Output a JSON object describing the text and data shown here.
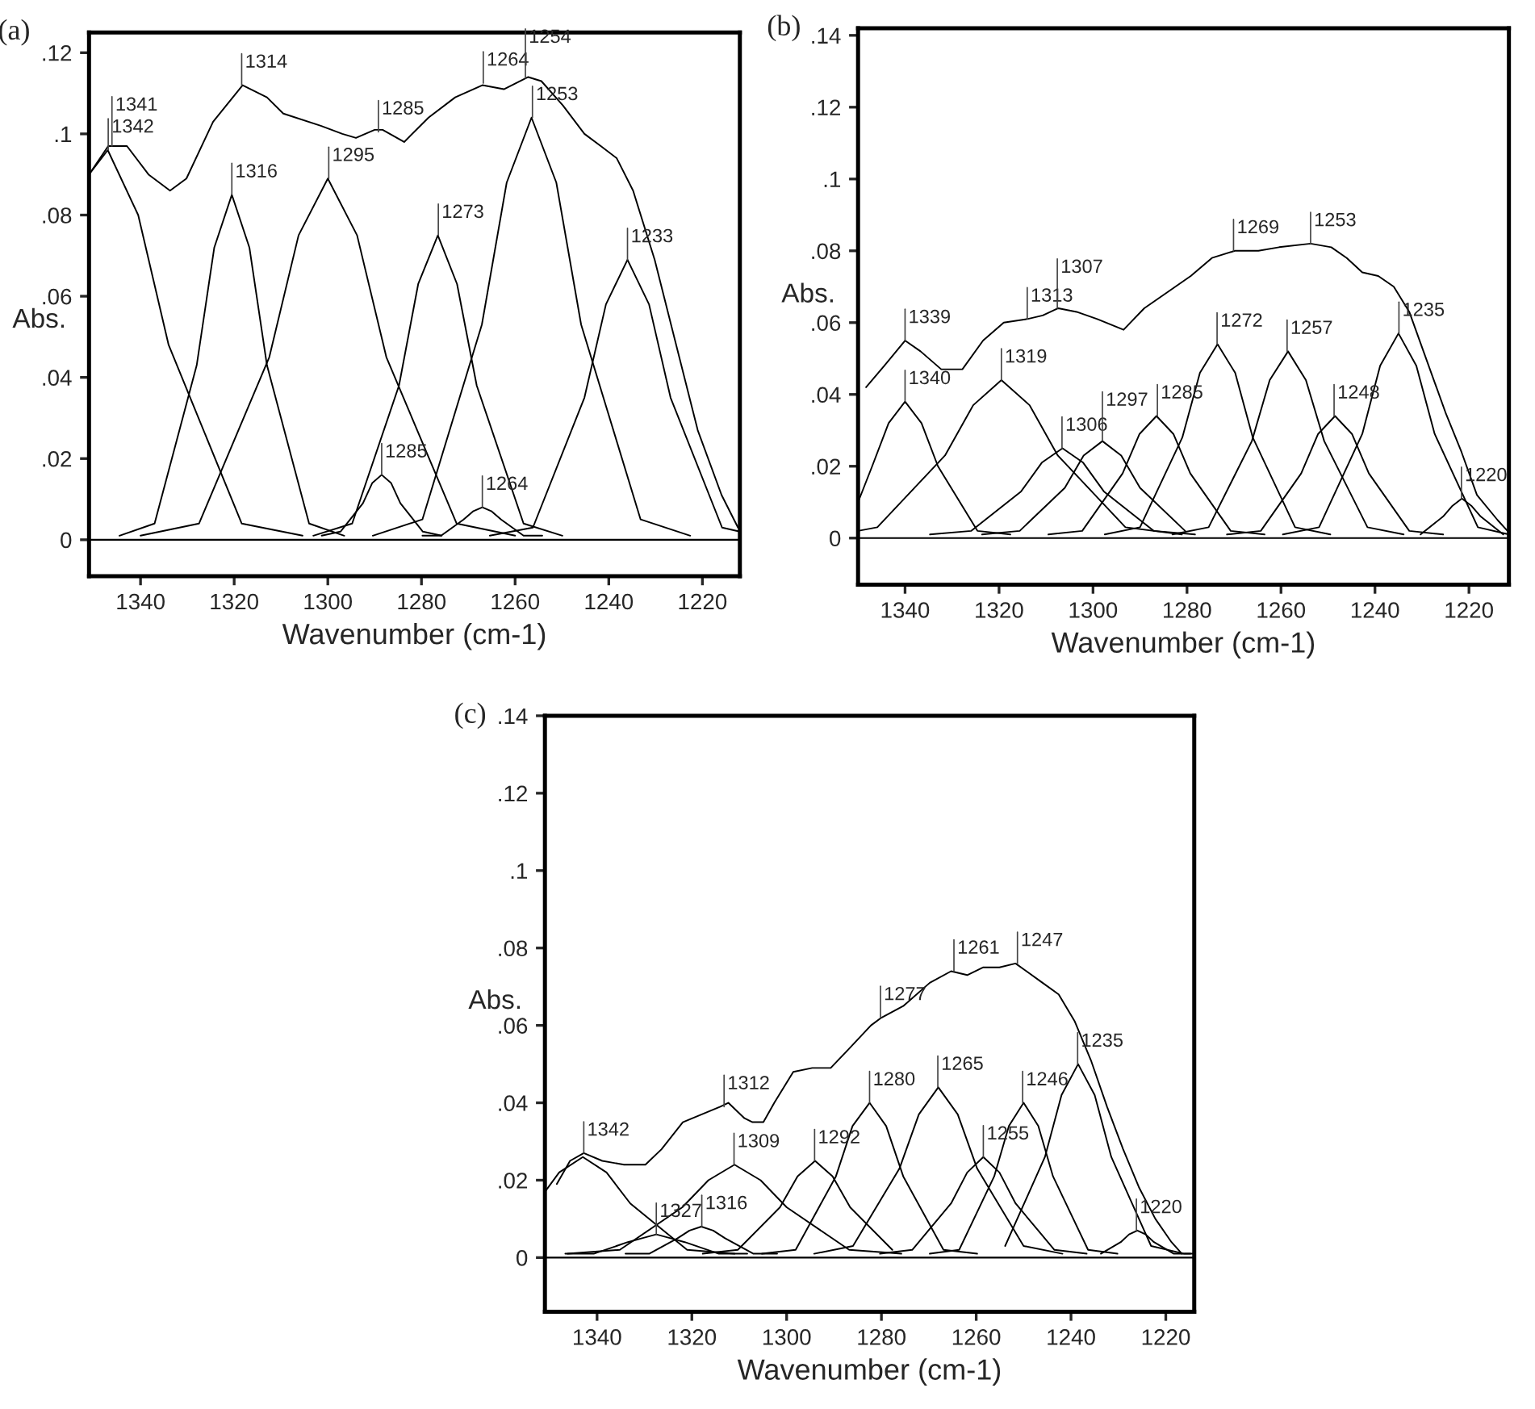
{
  "chart_data": [
    {
      "type": "line",
      "title": "(a)",
      "xlabel": "Wavenumber (cm-1)",
      "ylabel": "Abs.",
      "xlim": [
        1351,
        1212
      ],
      "ylim": [
        -0.009,
        0.125
      ],
      "xticks": [
        1340,
        1320,
        1300,
        1280,
        1260,
        1240,
        1220
      ],
      "yticks": [
        0,
        {
          "value": 0.02,
          "label": ".02"
        },
        {
          "value": 0.04,
          "label": ".04"
        },
        {
          "value": 0.06,
          "label": ".06"
        },
        {
          "value": 0.08,
          "label": ".08"
        },
        {
          "value": 0.1,
          "label": ".1"
        },
        {
          "value": 0.12,
          "label": ".12"
        }
      ],
      "ref_lines": [
        {
          "axis": "y",
          "value": 0,
          "color": "#000000"
        }
      ],
      "series": [
        {
          "color": "#000000",
          "x": [
            1351,
            1346.9,
            1342.9,
            1338.3,
            1333.7,
            1330.2,
            1324.5,
            1318.2,
            1313.0,
            1309.5,
            1301.5,
            1296.9,
            1294.0,
            1290.0,
            1288.3,
            1283.7,
            1278.5,
            1272.8,
            1267.0,
            1262.4,
            1257.2,
            1254.4,
            1249.8,
            1245.2,
            1241.7,
            1238.3,
            1234.8,
            1230.2,
            1225.6,
            1221.0,
            1215.9,
            1212.4
          ],
          "values": [
            0.09,
            0.097,
            0.097,
            0.09,
            0.086,
            0.089,
            0.103,
            0.112,
            0.109,
            0.105,
            0.102,
            0.1,
            0.099,
            0.101,
            0.101,
            0.098,
            0.104,
            0.109,
            0.112,
            0.111,
            0.114,
            0.113,
            0.107,
            0.1,
            0.097,
            0.094,
            0.086,
            0.069,
            0.048,
            0.027,
            0.011,
            0.003
          ]
        },
        {
          "color": "#000000",
          "x": [
            1351,
            1347,
            1340.5,
            1334,
            1318.4,
            1305.4
          ],
          "values": [
            0.09,
            0.096,
            0.08,
            0.048,
            0.004,
            0.001
          ]
        },
        {
          "color": "#000000",
          "x": [
            1344.5,
            1337,
            1328,
            1324.25,
            1320.5,
            1316.75,
            1313,
            1304,
            1296.5
          ],
          "values": [
            0.001,
            0.004,
            0.043,
            0.072,
            0.085,
            0.072,
            0.043,
            0.004,
            0.001
          ]
        },
        {
          "color": "#000000",
          "x": [
            1340,
            1327.5,
            1312.5,
            1306.25,
            1300,
            1293.75,
            1287.5,
            1272.5,
            1260
          ],
          "values": [
            0.001,
            0.004,
            0.045,
            0.075,
            0.089,
            0.075,
            0.045,
            0.004,
            0.001
          ]
        },
        {
          "color": "#000000",
          "x": [
            1301.3,
            1297.3,
            1292.5,
            1290.5,
            1288.5,
            1286.5,
            1284.5,
            1279.7,
            1275.7
          ],
          "values": [
            0.001,
            0.002,
            0.009,
            0.014,
            0.016,
            0.014,
            0.009,
            0.002,
            0.001
          ]
        },
        {
          "color": "#000000",
          "x": [
            1303.1,
            1294.8,
            1284.8,
            1280.7,
            1276.5,
            1272.4,
            1268.2,
            1258.2,
            1249.9
          ],
          "values": [
            0.001,
            0.004,
            0.038,
            0.063,
            0.075,
            0.063,
            0.038,
            0.004,
            0.001
          ]
        },
        {
          "color": "#000000",
          "x": [
            1279.8,
            1275.8,
            1271,
            1269,
            1267,
            1265,
            1263,
            1258.2,
            1254.2
          ],
          "values": [
            0.001,
            0.001,
            0.005,
            0.007,
            0.008,
            0.007,
            0.005,
            0.001,
            0.001
          ]
        },
        {
          "color": "#000000",
          "x": [
            1290.4,
            1279.8,
            1267.1,
            1261.8,
            1256.5,
            1251.2,
            1245.9,
            1233.2,
            1222.6
          ],
          "values": [
            0.001,
            0.005,
            0.053,
            0.088,
            0.104,
            0.088,
            0.053,
            0.005,
            0.001
          ]
        },
        {
          "color": "#000000",
          "x": [
            1265.4,
            1256.2,
            1245.2,
            1240.6,
            1236,
            1231.4,
            1226.8,
            1215.8,
            1212
          ],
          "values": [
            0.001,
            0.003,
            0.035,
            0.058,
            0.069,
            0.058,
            0.035,
            0.003,
            0.002
          ]
        }
      ],
      "annotations": [
        {
          "text": "1342",
          "x": 1346.9,
          "y": 0.096
        },
        {
          "text": "1341",
          "x": 1346.1,
          "y": 0.097
        },
        {
          "text": "1314",
          "x": 1318.4,
          "y": 0.112
        },
        {
          "text": "1285",
          "x": 1289.2,
          "y": 0.1005
        },
        {
          "text": "1264",
          "x": 1266.8,
          "y": 0.1125
        },
        {
          "text": "1254",
          "x": 1257.8,
          "y": 0.1137
        },
        {
          "text": "1253",
          "x": 1256.3,
          "y": 0.104
        },
        {
          "text": "1316",
          "x": 1320.5,
          "y": 0.085
        },
        {
          "text": "1295",
          "x": 1299.8,
          "y": 0.089
        },
        {
          "text": "1273",
          "x": 1276.4,
          "y": 0.075
        },
        {
          "text": "1233",
          "x": 1236,
          "y": 0.069
        },
        {
          "text": "1285",
          "x": 1288.5,
          "y": 0.016
        },
        {
          "text": "1264",
          "x": 1267,
          "y": 0.008
        }
      ]
    },
    {
      "type": "line",
      "title": "(b)",
      "xlabel": "Wavenumber (cm-1)",
      "ylabel": "Abs.",
      "xlim": [
        1350,
        1211.5
      ],
      "ylim": [
        -0.013,
        0.142
      ],
      "xticks": [
        1340,
        1320,
        1300,
        1280,
        1260,
        1240,
        1220
      ],
      "yticks": [
        0,
        {
          "value": 0.02,
          "label": ".02"
        },
        {
          "value": 0.04,
          "label": ".04"
        },
        {
          "value": 0.06,
          "label": ".06"
        },
        {
          "value": 0.08,
          "label": ".08"
        },
        {
          "value": 0.1,
          "label": ".1"
        },
        {
          "value": 0.12,
          "label": ".12"
        },
        {
          "value": 0.14,
          "label": ".14"
        }
      ],
      "ref_lines": [
        {
          "axis": "y",
          "value": 0,
          "color": "#000000"
        }
      ],
      "series": [
        {
          "color": "#000000",
          "x": [
            1348.3,
            1344.4,
            1340,
            1336.7,
            1332.3,
            1327.8,
            1323.4,
            1319.0,
            1314.0,
            1310.7,
            1307.4,
            1303.5,
            1299.1,
            1293.5,
            1289.1,
            1284.7,
            1279.2,
            1274.7,
            1269.8,
            1264.8,
            1260.4,
            1253.7,
            1249.3,
            1246.0,
            1242.7,
            1239.3,
            1236.0,
            1232.7,
            1229.4,
            1225.0,
            1221.6,
            1218.3,
            1213.9,
            1211.8
          ],
          "values": [
            0.042,
            0.048,
            0.055,
            0.052,
            0.047,
            0.047,
            0.055,
            0.06,
            0.061,
            0.062,
            0.064,
            0.063,
            0.061,
            0.058,
            0.064,
            0.068,
            0.073,
            0.078,
            0.08,
            0.08,
            0.081,
            0.082,
            0.081,
            0.078,
            0.074,
            0.073,
            0.07,
            0.063,
            0.051,
            0.035,
            0.024,
            0.012,
            0.005,
            0.002
          ]
        },
        {
          "color": "#000000",
          "x": [
            1350,
            1347,
            1343.5,
            1340,
            1336.5,
            1333,
            1324.6,
            1317.6
          ],
          "values": [
            0.01,
            0.02,
            0.032,
            0.038,
            0.032,
            0.02,
            0.002,
            0.001
          ]
        },
        {
          "color": "#000000",
          "x": [
            1350,
            1345.9,
            1331.5,
            1325.5,
            1319.5,
            1313.5,
            1307.5,
            1293.1,
            1281.1
          ],
          "values": [
            0.002,
            0.003,
            0.023,
            0.037,
            0.044,
            0.037,
            0.023,
            0.003,
            0.001
          ]
        },
        {
          "color": "#000000",
          "x": [
            1334.7,
            1325.9,
            1315.3,
            1310.9,
            1306.5,
            1302.1,
            1297.7,
            1287.1,
            1278.3
          ],
          "values": [
            0.001,
            0.002,
            0.013,
            0.021,
            0.025,
            0.021,
            0.013,
            0.002,
            0.001
          ]
        },
        {
          "color": "#000000",
          "x": [
            1323.6,
            1315.6,
            1306,
            1302,
            1298,
            1294,
            1290,
            1280.4
          ],
          "values": [
            0.001,
            0.002,
            0.014,
            0.023,
            0.027,
            0.023,
            0.014,
            0.002
          ]
        },
        {
          "color": "#000000",
          "x": [
            1309.5,
            1302.3,
            1293.7,
            1290.1,
            1286.5,
            1282.9,
            1279.3,
            1270.7,
            1263.5
          ],
          "values": [
            0.001,
            0.002,
            0.018,
            0.029,
            0.034,
            0.029,
            0.018,
            0.002,
            0.001
          ]
        },
        {
          "color": "#000000",
          "x": [
            1297.5,
            1290,
            1281,
            1277.25,
            1273.5,
            1269.75,
            1266,
            1257,
            1249.5
          ],
          "values": [
            0.001,
            0.003,
            0.028,
            0.046,
            0.054,
            0.046,
            0.028,
            0.003,
            0.001
          ]
        },
        {
          "color": "#000000",
          "x": [
            1283.1,
            1275.4,
            1266.2,
            1262.4,
            1258.5,
            1254.7,
            1250.8,
            1241.6,
            1233.9
          ],
          "values": [
            0.001,
            0.003,
            0.027,
            0.044,
            0.052,
            0.044,
            0.027,
            0.003,
            0.001
          ]
        },
        {
          "color": "#000000",
          "x": [
            1271.5,
            1264.3,
            1255.7,
            1252.1,
            1248.5,
            1244.9,
            1241.3,
            1232.7,
            1225.5
          ],
          "values": [
            0.001,
            0.002,
            0.018,
            0.029,
            0.034,
            0.029,
            0.018,
            0.002,
            0.001
          ]
        },
        {
          "color": "#000000",
          "x": [
            1259.6,
            1251.9,
            1242.7,
            1238.9,
            1235,
            1231.2,
            1227.3,
            1218.1,
            1211.5
          ],
          "values": [
            0.001,
            0.003,
            0.029,
            0.048,
            0.057,
            0.048,
            0.029,
            0.003,
            0.001
          ]
        },
        {
          "color": "#000000",
          "x": [
            1230.3,
            1225.5,
            1223.5,
            1221.5,
            1219.5,
            1217.5,
            1212.7
          ],
          "values": [
            0.001,
            0.006,
            0.009,
            0.011,
            0.009,
            0.006,
            0.001
          ]
        }
      ],
      "annotations": [
        {
          "text": "1339",
          "x": 1340,
          "y": 0.055
        },
        {
          "text": "1313",
          "x": 1314,
          "y": 0.061
        },
        {
          "text": "1307",
          "x": 1307.6,
          "y": 0.064
        },
        {
          "text": "1269",
          "x": 1270.1,
          "y": 0.08
        },
        {
          "text": "1253",
          "x": 1253.7,
          "y": 0.082
        },
        {
          "text": "1340",
          "x": 1340,
          "y": 0.038
        },
        {
          "text": "1319",
          "x": 1319.5,
          "y": 0.044
        },
        {
          "text": "1306",
          "x": 1306.6,
          "y": 0.025
        },
        {
          "text": "1297",
          "x": 1298,
          "y": 0.027
        },
        {
          "text": "1285",
          "x": 1286.3,
          "y": 0.034
        },
        {
          "text": "1272",
          "x": 1273.6,
          "y": 0.054
        },
        {
          "text": "1257",
          "x": 1258.7,
          "y": 0.052
        },
        {
          "text": "1248",
          "x": 1248.7,
          "y": 0.034
        },
        {
          "text": "1235",
          "x": 1234.9,
          "y": 0.057
        },
        {
          "text": "1220",
          "x": 1221.6,
          "y": 0.011
        }
      ]
    },
    {
      "type": "line",
      "title": "(c)",
      "xlabel": "Wavenumber (cm-1)",
      "ylabel": "Abs.",
      "xlim": [
        1351,
        1214
      ],
      "ylim": [
        -0.014,
        0.14
      ],
      "xticks": [
        1340,
        1320,
        1300,
        1280,
        1260,
        1240,
        1220
      ],
      "yticks": [
        0,
        {
          "value": 0.02,
          "label": ".02"
        },
        {
          "value": 0.04,
          "label": ".04"
        },
        {
          "value": 0.06,
          "label": ".06"
        },
        {
          "value": 0.08,
          "label": ".08"
        },
        {
          "value": 0.1,
          "label": ".1"
        },
        {
          "value": 0.12,
          "label": ".12"
        },
        {
          "value": 0.14,
          "label": ".14"
        }
      ],
      "ref_lines": [
        {
          "axis": "y",
          "value": 0,
          "color": "#000000"
        }
      ],
      "series": [
        {
          "color": "#000000",
          "x": [
            1348.5,
            1345.7,
            1342.8,
            1338.9,
            1334.3,
            1329.8,
            1326.4,
            1321.9,
            1317.9,
            1314.0,
            1312.3,
            1308.9,
            1307.2,
            1304.9,
            1302.6,
            1298.6,
            1294.6,
            1290.7,
            1286.8,
            1282.2,
            1280.0,
            1275.4,
            1269.8,
            1265.3,
            1261.9,
            1258.5,
            1255.1,
            1251.7,
            1249.4,
            1246.0,
            1242.6,
            1239.2,
            1235.8,
            1232.4,
            1229.0,
            1225.6,
            1222.2,
            1218.8,
            1216.6
          ],
          "values": [
            0.019,
            0.025,
            0.027,
            0.025,
            0.024,
            0.024,
            0.028,
            0.035,
            0.037,
            0.039,
            0.04,
            0.036,
            0.035,
            0.035,
            0.04,
            0.048,
            0.049,
            0.049,
            0.054,
            0.06,
            0.062,
            0.065,
            0.071,
            0.074,
            0.073,
            0.075,
            0.075,
            0.076,
            0.074,
            0.071,
            0.068,
            0.061,
            0.051,
            0.039,
            0.028,
            0.018,
            0.01,
            0.004,
            0.001
          ]
        },
        {
          "color": "#000000",
          "x": [
            1351,
            1348,
            1343,
            1338,
            1333,
            1321,
            1311
          ],
          "values": [
            0.017,
            0.022,
            0.026,
            0.022,
            0.014,
            0.002,
            0.001
          ]
        },
        {
          "color": "#000000",
          "x": [
            1346.7,
            1340.7,
            1333.5,
            1330.5,
            1327.5,
            1324.5,
            1321.5,
            1314.3,
            1308.3
          ],
          "values": [
            0.001,
            0.001,
            0.004,
            0.005,
            0.006,
            0.005,
            0.004,
            0.001,
            0.001
          ]
        },
        {
          "color": "#000000",
          "x": [
            1334,
            1329,
            1323,
            1320.5,
            1318,
            1315.5,
            1313,
            1307,
            1302
          ],
          "values": [
            0.001,
            0.001,
            0.005,
            0.007,
            0.008,
            0.007,
            0.005,
            0.001,
            0.001
          ]
        },
        {
          "color": "#000000",
          "x": [
            1346.2,
            1335.2,
            1322,
            1316.5,
            1311,
            1305.5,
            1300,
            1286.8,
            1275.8
          ],
          "values": [
            0.001,
            0.002,
            0.013,
            0.02,
            0.024,
            0.02,
            0.013,
            0.002,
            0.001
          ]
        },
        {
          "color": "#000000",
          "x": [
            1317.7,
            1310.3,
            1301.4,
            1297.7,
            1294,
            1290.3,
            1286.6,
            1277.7
          ],
          "values": [
            0.001,
            0.002,
            0.013,
            0.021,
            0.025,
            0.021,
            0.013,
            0.002
          ]
        },
        {
          "color": "#000000",
          "x": [
            1305.2,
            1298.1,
            1289.6,
            1286.1,
            1282.5,
            1279,
            1275.4,
            1266.9,
            1259.8
          ],
          "values": [
            0.001,
            0.002,
            0.021,
            0.034,
            0.04,
            0.034,
            0.021,
            0.002,
            0.001
          ]
        },
        {
          "color": "#000000",
          "x": [
            1294.2,
            1286,
            1276.2,
            1272.1,
            1268,
            1263.9,
            1259.8,
            1250,
            1241.8
          ],
          "values": [
            0.001,
            0.003,
            0.023,
            0.037,
            0.044,
            0.037,
            0.023,
            0.003,
            0.001
          ]
        },
        {
          "color": "#000000",
          "x": [
            1280.3,
            1273.5,
            1265.3,
            1261.9,
            1258.5,
            1255.1,
            1251.7,
            1243.5,
            1236.7
          ],
          "values": [
            0.001,
            0.002,
            0.014,
            0.022,
            0.026,
            0.022,
            0.014,
            0.002,
            0.001
          ]
        },
        {
          "color": "#000000",
          "x": [
            1269.8,
            1263.6,
            1256.2,
            1253.1,
            1250,
            1246.9,
            1243.8,
            1236.4,
            1230.2
          ],
          "values": [
            0.001,
            0.002,
            0.021,
            0.034,
            0.04,
            0.034,
            0.021,
            0.002,
            0.001
          ]
        },
        {
          "color": "#000000",
          "x": [
            1253.9,
            1245.5,
            1242,
            1238.5,
            1235,
            1231.5,
            1223.1,
            1216.1,
            1214
          ],
          "values": [
            0.003,
            0.026,
            0.042,
            0.05,
            0.042,
            0.026,
            0.003,
            0.001,
            0.001
          ]
        },
        {
          "color": "#000000",
          "x": [
            1233.7,
            1229.5,
            1227.75,
            1226,
            1224.25,
            1222.5,
            1218.3,
            1214.8
          ],
          "values": [
            0.001,
            0.004,
            0.006,
            0.007,
            0.006,
            0.004,
            0.001,
            0.001
          ]
        }
      ],
      "annotations": [
        {
          "text": "1342",
          "x": 1342.8,
          "y": 0.027
        },
        {
          "text": "1312",
          "x": 1313.2,
          "y": 0.039
        },
        {
          "text": "1277",
          "x": 1280.2,
          "y": 0.062
        },
        {
          "text": "1261",
          "x": 1264.7,
          "y": 0.074
        },
        {
          "text": "1247",
          "x": 1251.3,
          "y": 0.076
        },
        {
          "text": "1235",
          "x": 1238.6,
          "y": 0.05
        },
        {
          "text": "1280",
          "x": 1282.5,
          "y": 0.04
        },
        {
          "text": "1265",
          "x": 1268.1,
          "y": 0.044
        },
        {
          "text": "1309",
          "x": 1311.1,
          "y": 0.024
        },
        {
          "text": "1292",
          "x": 1294.1,
          "y": 0.025
        },
        {
          "text": "1255",
          "x": 1258.5,
          "y": 0.026
        },
        {
          "text": "1246",
          "x": 1250.2,
          "y": 0.04
        },
        {
          "text": "1327",
          "x": 1327.5,
          "y": 0.006
        },
        {
          "text": "1316",
          "x": 1317.9,
          "y": 0.008
        },
        {
          "text": "1220",
          "x": 1226.2,
          "y": 0.007
        }
      ]
    }
  ]
}
